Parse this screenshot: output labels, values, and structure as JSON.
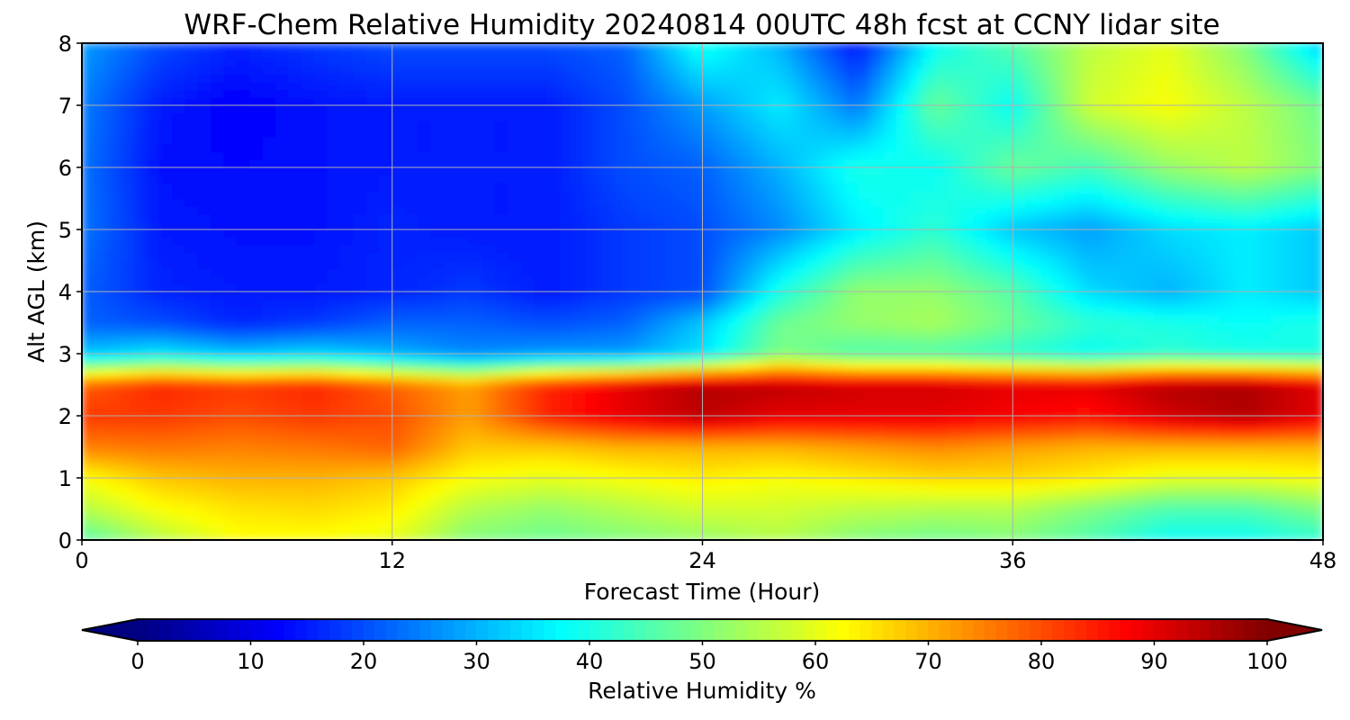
{
  "chart_data": {
    "type": "heatmap",
    "title": "WRF-Chem Relative Humidity 20240814 00UTC 48h fcst at CCNY lidar site",
    "xlabel": "Forecast Time (Hour)",
    "ylabel": "Alt AGL (km)",
    "xlim": [
      0,
      48
    ],
    "ylim": [
      0,
      8
    ],
    "xticks": [
      0,
      12,
      24,
      36,
      48
    ],
    "yticks": [
      0,
      1,
      2,
      3,
      4,
      5,
      6,
      7,
      8
    ],
    "grid": true,
    "x_hours": [
      0,
      3,
      6,
      9,
      12,
      15,
      18,
      21,
      24,
      27,
      30,
      33,
      36,
      39,
      42,
      45,
      48
    ],
    "y_km": [
      0,
      0.5,
      1,
      1.5,
      2,
      2.5,
      3,
      3.5,
      4,
      5,
      6,
      7,
      8
    ],
    "z_rh_percent": [
      [
        45,
        55,
        62,
        62,
        60,
        50,
        48,
        50,
        52,
        55,
        50,
        48,
        50,
        45,
        38,
        38,
        42
      ],
      [
        55,
        62,
        65,
        66,
        64,
        55,
        52,
        55,
        58,
        58,
        56,
        55,
        55,
        50,
        45,
        45,
        50
      ],
      [
        62,
        68,
        70,
        70,
        68,
        62,
        60,
        62,
        64,
        62,
        64,
        66,
        66,
        64,
        60,
        60,
        62
      ],
      [
        75,
        76,
        75,
        76,
        78,
        68,
        68,
        70,
        70,
        70,
        72,
        74,
        72,
        70,
        70,
        70,
        70
      ],
      [
        82,
        82,
        80,
        82,
        80,
        72,
        84,
        90,
        94,
        90,
        90,
        90,
        88,
        86,
        92,
        95,
        90
      ],
      [
        78,
        84,
        82,
        84,
        78,
        72,
        84,
        90,
        95,
        94,
        92,
        92,
        90,
        90,
        95,
        96,
        90
      ],
      [
        32,
        36,
        32,
        34,
        30,
        26,
        28,
        28,
        35,
        50,
        45,
        45,
        42,
        38,
        42,
        40,
        40
      ],
      [
        22,
        20,
        16,
        18,
        22,
        22,
        20,
        22,
        32,
        48,
        52,
        54,
        48,
        42,
        40,
        38,
        40
      ],
      [
        22,
        16,
        15,
        15,
        16,
        18,
        15,
        18,
        20,
        40,
        52,
        52,
        46,
        34,
        30,
        36,
        32
      ],
      [
        24,
        15,
        14,
        14,
        16,
        15,
        15,
        18,
        20,
        26,
        36,
        42,
        32,
        28,
        34,
        36,
        32
      ],
      [
        24,
        14,
        13,
        14,
        15,
        15,
        15,
        20,
        22,
        30,
        40,
        38,
        48,
        44,
        52,
        56,
        50
      ],
      [
        25,
        15,
        12,
        14,
        15,
        15,
        15,
        20,
        28,
        36,
        24,
        48,
        38,
        58,
        62,
        56,
        48
      ],
      [
        28,
        20,
        16,
        18,
        20,
        20,
        20,
        22,
        40,
        30,
        14,
        38,
        46,
        56,
        60,
        50,
        32
      ]
    ],
    "colorbar": {
      "label": "Relative Humidity %",
      "min": 0,
      "max": 100,
      "ticks": [
        0,
        10,
        20,
        30,
        40,
        50,
        60,
        70,
        80,
        90,
        100
      ],
      "extend": "both",
      "colormap": "jet"
    }
  }
}
